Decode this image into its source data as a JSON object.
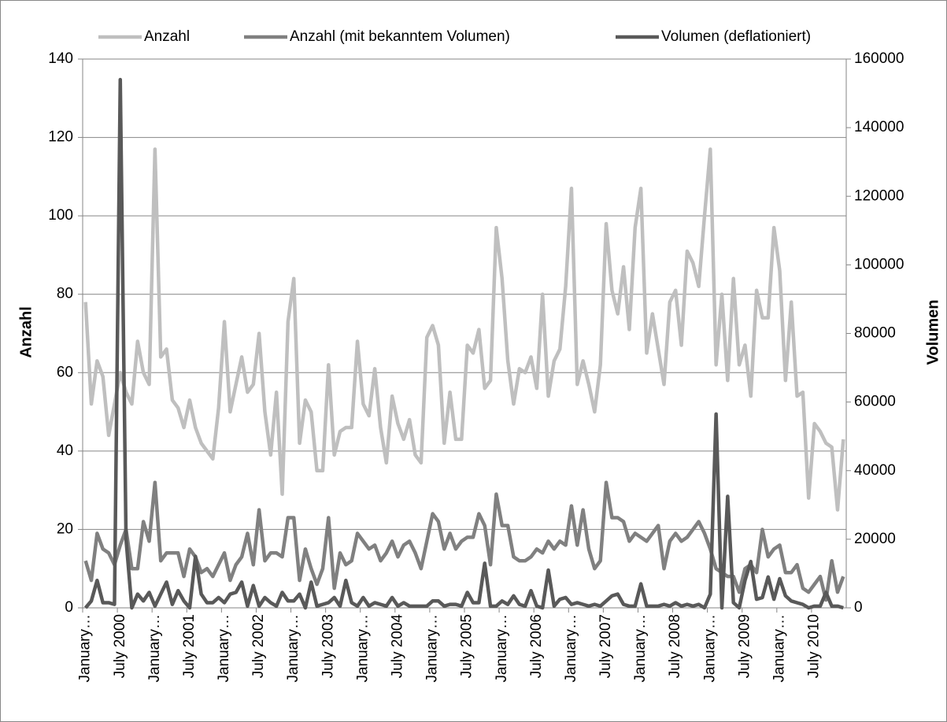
{
  "chart_data": {
    "type": "line",
    "legend": "top",
    "grid": true,
    "ylabel": "Anzahl",
    "y2label": "Volumen",
    "ylim": [
      0,
      140
    ],
    "yticks": [
      0,
      20,
      40,
      60,
      80,
      100,
      120,
      140
    ],
    "y2lim": [
      0,
      160000
    ],
    "y2ticks": [
      0,
      20000,
      40000,
      60000,
      80000,
      100000,
      120000,
      140000,
      160000
    ],
    "categories": [
      "January…",
      null,
      null,
      null,
      null,
      null,
      "July 2000",
      null,
      null,
      null,
      null,
      null,
      "January…",
      null,
      null,
      null,
      null,
      null,
      "July 2001",
      null,
      null,
      null,
      null,
      null,
      "January…",
      null,
      null,
      null,
      null,
      null,
      "July 2002",
      null,
      null,
      null,
      null,
      null,
      "January…",
      null,
      null,
      null,
      null,
      null,
      "July 2003",
      null,
      null,
      null,
      null,
      null,
      "January…",
      null,
      null,
      null,
      null,
      null,
      "July 2004",
      null,
      null,
      null,
      null,
      null,
      "January…",
      null,
      null,
      null,
      null,
      null,
      "July 2005",
      null,
      null,
      null,
      null,
      null,
      "January…",
      null,
      null,
      null,
      null,
      null,
      "July 2006",
      null,
      null,
      null,
      null,
      null,
      "January…",
      null,
      null,
      null,
      null,
      null,
      "July 2007",
      null,
      null,
      null,
      null,
      null,
      "January…",
      null,
      null,
      null,
      null,
      null,
      "July 2008",
      null,
      null,
      null,
      null,
      null,
      "January…",
      null,
      null,
      null,
      null,
      null,
      "July 2009",
      null,
      null,
      null,
      null,
      null,
      "January…",
      null,
      null,
      null,
      null,
      null,
      "July 2010",
      null,
      null,
      null,
      null,
      null
    ],
    "series": [
      {
        "name": "Anzahl",
        "color": "#bfbfbf",
        "values": [
          78,
          52,
          63,
          59,
          44,
          52,
          60,
          55,
          52,
          68,
          60,
          57,
          117,
          64,
          66,
          53,
          51,
          46,
          53,
          46,
          42,
          40,
          38,
          51,
          73,
          50,
          57,
          64,
          55,
          57,
          70,
          50,
          39,
          55,
          29,
          73,
          84,
          42,
          53,
          50,
          35,
          35,
          62,
          39,
          45,
          46,
          46,
          68,
          52,
          49,
          61,
          46,
          37,
          54,
          47,
          43,
          48,
          39,
          37,
          69,
          72,
          67,
          42,
          55,
          43,
          43,
          67,
          65,
          71,
          56,
          58,
          97,
          84,
          63,
          52,
          61,
          60,
          64,
          56,
          80,
          54,
          63,
          66,
          82,
          107,
          57,
          63,
          57,
          50,
          62,
          98,
          81,
          75,
          87,
          71,
          97,
          107,
          65,
          75,
          66,
          57,
          78,
          81,
          67,
          91,
          88,
          82,
          100,
          117,
          62,
          80,
          58,
          84,
          62,
          67,
          54,
          81,
          74,
          74,
          97,
          86,
          58,
          78,
          54,
          55,
          28,
          47,
          45,
          42,
          41,
          25,
          43
        ]
      },
      {
        "name": "Anzahl (mit bekanntem Volumen)",
        "color": "#808080",
        "values": [
          12,
          7,
          19,
          15,
          14,
          11,
          16,
          20,
          10,
          10,
          22,
          17,
          32,
          12,
          14,
          14,
          14,
          8,
          15,
          13,
          9,
          10,
          8,
          11,
          14,
          7,
          11,
          13,
          19,
          11,
          25,
          12,
          14,
          14,
          13,
          23,
          23,
          7,
          15,
          10,
          6,
          10,
          23,
          5,
          14,
          11,
          12,
          19,
          17,
          15,
          16,
          12,
          14,
          17,
          13,
          16,
          17,
          14,
          10,
          17,
          24,
          22,
          15,
          19,
          15,
          17,
          18,
          18,
          24,
          21,
          11,
          29,
          21,
          21,
          13,
          12,
          12,
          13,
          15,
          14,
          17,
          15,
          17,
          16,
          26,
          16,
          25,
          15,
          10,
          12,
          32,
          23,
          23,
          22,
          17,
          19,
          18,
          17,
          19,
          21,
          10,
          17,
          19,
          17,
          18,
          20,
          22,
          19,
          15,
          10,
          9,
          8,
          8,
          4,
          10,
          11,
          9,
          20,
          13,
          15,
          16,
          9,
          9,
          11,
          5,
          4,
          6,
          8,
          2,
          12,
          4,
          8
        ]
      },
      {
        "name": "Volumen (deflationiert)",
        "color": "#595959",
        "axis": "y2",
        "values": [
          0,
          2000,
          8000,
          1500,
          1500,
          1000,
          154000,
          20000,
          0,
          4000,
          2000,
          4500,
          500,
          4000,
          7500,
          1000,
          5000,
          2000,
          0,
          15000,
          4000,
          1500,
          1500,
          3000,
          1500,
          4000,
          4500,
          7500,
          500,
          6500,
          500,
          3000,
          1500,
          500,
          4500,
          2000,
          2000,
          4000,
          0,
          7500,
          500,
          1000,
          1500,
          3000,
          500,
          8000,
          1500,
          500,
          3000,
          500,
          1500,
          1000,
          500,
          3000,
          500,
          1500,
          500,
          500,
          500,
          500,
          2000,
          2000,
          500,
          1000,
          1000,
          500,
          4500,
          1500,
          1500,
          13000,
          500,
          500,
          2000,
          1000,
          3500,
          1000,
          500,
          5000,
          500,
          0,
          11000,
          500,
          2500,
          3000,
          1000,
          1500,
          1000,
          500,
          1000,
          500,
          2000,
          3500,
          4000,
          1000,
          500,
          500,
          7000,
          500,
          500,
          500,
          1000,
          500,
          1500,
          500,
          1000,
          500,
          1000,
          0,
          4000,
          56500,
          0,
          32500,
          1500,
          0,
          8000,
          13500,
          2500,
          3000,
          9000,
          2500,
          8500,
          3500,
          2000,
          1500,
          1000,
          0,
          500,
          500,
          4500,
          500,
          500,
          0
        ]
      }
    ]
  }
}
